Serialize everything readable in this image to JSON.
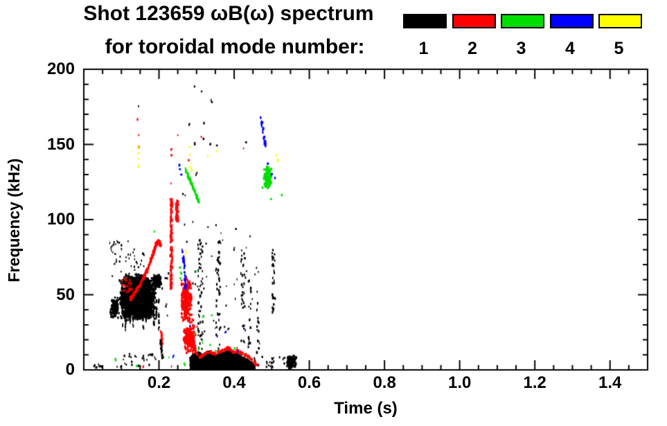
{
  "chart_data": {
    "type": "scatter",
    "title": "Shot 123659 ωB(ω) spectrum",
    "subtitle": "for toroidal mode number:",
    "xlabel": "Time (s)",
    "ylabel": "Frequency (kHz)",
    "xlim": [
      0,
      1.5
    ],
    "ylim": [
      0,
      200
    ],
    "x_major_ticks": [
      0.2,
      0.4,
      0.6,
      0.8,
      1.0,
      1.2,
      1.4
    ],
    "x_tick_labels": [
      "0.2",
      "0.4",
      "0.6",
      "0.8",
      "1.0",
      "1.2",
      "1.4"
    ],
    "x_minor_step": 0.05,
    "y_major_ticks": [
      0,
      50,
      100,
      150,
      200
    ],
    "y_tick_labels": [
      "0",
      "50",
      "100",
      "150",
      "200"
    ],
    "y_minor_step": 10,
    "grid": false,
    "axis_color": "#000000",
    "legend": {
      "position": "top-right",
      "modes": [
        {
          "label": "1",
          "color": "#000000"
        },
        {
          "label": "2",
          "color": "#ff0000"
        },
        {
          "label": "3",
          "color": "#00dd00"
        },
        {
          "label": "4",
          "color": "#0000ff"
        },
        {
          "label": "5",
          "color": "#ffff00"
        }
      ]
    },
    "clusters": [
      {
        "shape": "blob",
        "mode": 1,
        "t": [
          0.094,
          0.192
        ],
        "f": [
          33,
          64
        ],
        "n": 2300,
        "clump": true,
        "size": [
          2.0,
          2.8
        ]
      },
      {
        "shape": "blob",
        "mode": 1,
        "t": [
          0.183,
          0.206
        ],
        "f": [
          55,
          64
        ],
        "n": 200,
        "clump": true,
        "size": [
          2.0,
          2.6
        ]
      },
      {
        "shape": "blob",
        "mode": 1,
        "t": [
          0.07,
          0.093
        ],
        "f": [
          34,
          49
        ],
        "n": 170,
        "clump": true,
        "size": [
          1.8,
          2.4
        ]
      },
      {
        "shape": "striations",
        "mode": 1,
        "t": [
          0.104,
          0.2
        ],
        "cols": 15,
        "f": [
          22,
          52
        ],
        "n": 14
      },
      {
        "shape": "blob",
        "mode": 1,
        "t": [
          0.068,
          0.162
        ],
        "f": [
          62,
          86
        ],
        "n": 48,
        "clump": false,
        "size": [
          1.3,
          2.0
        ]
      },
      {
        "shape": "band",
        "mode": 1,
        "fbase": 0.4,
        "n": 2500,
        "profile": [
          [
            0.283,
            9
          ],
          [
            0.295,
            11
          ],
          [
            0.305,
            12
          ],
          [
            0.315,
            10
          ],
          [
            0.325,
            12
          ],
          [
            0.335,
            13
          ],
          [
            0.345,
            11
          ],
          [
            0.355,
            10
          ],
          [
            0.365,
            11
          ],
          [
            0.375,
            12
          ],
          [
            0.385,
            14
          ],
          [
            0.395,
            12
          ],
          [
            0.405,
            11
          ],
          [
            0.415,
            10
          ],
          [
            0.425,
            8
          ],
          [
            0.435,
            7
          ],
          [
            0.445,
            5
          ],
          [
            0.453,
            3
          ]
        ]
      },
      {
        "shape": "blob",
        "mode": 1,
        "t": [
          0.538,
          0.567
        ],
        "f": [
          1.5,
          10
        ],
        "n": 130,
        "clump": true,
        "size": [
          1.8,
          2.4
        ]
      },
      {
        "shape": "blob",
        "mode": 1,
        "t": [
          0.44,
          0.535
        ],
        "f": [
          1,
          9
        ],
        "n": 26,
        "clump": false,
        "size": [
          1.4,
          2.0
        ]
      },
      {
        "shape": "blob",
        "mode": 1,
        "t": [
          0.1,
          0.18
        ],
        "f": [
          3,
          11
        ],
        "n": 22,
        "clump": false,
        "size": [
          1.4,
          2.0
        ]
      },
      {
        "shape": "line",
        "mode": 1,
        "pts": [
          [
            0.204,
            20
          ],
          [
            0.21,
            8
          ]
        ],
        "w": 3,
        "n": 26,
        "gap": 0.1
      },
      {
        "shape": "vstreak",
        "mode": 1,
        "t": 0.31,
        "tj": 0.006,
        "f": [
          15,
          88
        ],
        "n": 42
      },
      {
        "shape": "vstreak",
        "mode": 1,
        "t": 0.358,
        "tj": 0.006,
        "f": [
          14,
          88
        ],
        "n": 38
      },
      {
        "shape": "vstreak",
        "mode": 1,
        "t": 0.423,
        "tj": 0.005,
        "f": [
          14,
          80
        ],
        "n": 30
      },
      {
        "shape": "vstreak",
        "mode": 1,
        "t": 0.441,
        "tj": 0.004,
        "f": [
          15,
          62
        ],
        "n": 18
      },
      {
        "shape": "vstreak",
        "mode": 1,
        "t": 0.462,
        "tj": 0.004,
        "f": [
          12,
          56
        ],
        "n": 15
      },
      {
        "shape": "vstreak",
        "mode": 1,
        "t": 0.505,
        "tj": 0.004,
        "f": [
          38,
          82
        ],
        "n": 28
      },
      {
        "shape": "blob",
        "mode": 1,
        "t": [
          0.262,
          0.47
        ],
        "f": [
          13,
          100
        ],
        "n": 60,
        "clump": false,
        "size": [
          1.2,
          1.8
        ]
      },
      {
        "shape": "dots",
        "mode": 1,
        "pts": [
          [
            0.1455,
            175
          ],
          [
            0.295,
            188
          ],
          [
            0.313,
            185
          ],
          [
            0.34,
            179
          ],
          [
            0.281,
            163
          ],
          [
            0.32,
            164
          ],
          [
            0.296,
            151
          ],
          [
            0.318,
            154
          ],
          [
            0.337,
            151
          ],
          [
            0.43,
            151
          ],
          [
            0.355,
            150
          ],
          [
            0.3,
            131
          ],
          [
            0.264,
            118
          ],
          [
            0.269,
            116
          ],
          [
            0.218,
            62
          ],
          [
            0.222,
            61
          ],
          [
            0.225,
            64
          ],
          [
            0.21,
            55
          ],
          [
            0.219,
            43
          ],
          [
            0.224,
            36
          ],
          [
            0.028,
            3
          ],
          [
            0.033,
            2
          ],
          [
            0.04,
            3.5
          ],
          [
            0.046,
            2
          ],
          [
            0.088,
            3
          ],
          [
            0.098,
            2.5
          ],
          [
            0.182,
            10
          ],
          [
            0.19,
            8
          ]
        ]
      },
      {
        "shape": "line",
        "mode": 2,
        "pts": [
          [
            0.122,
            47
          ],
          [
            0.132,
            50
          ],
          [
            0.142,
            54
          ],
          [
            0.152,
            58
          ],
          [
            0.162,
            63
          ],
          [
            0.17,
            68
          ],
          [
            0.178,
            73
          ],
          [
            0.186,
            79
          ],
          [
            0.192,
            84
          ],
          [
            0.199,
            86
          ],
          [
            0.204,
            83
          ]
        ],
        "w": 4,
        "n": 300,
        "gap": 0.18
      },
      {
        "shape": "blob",
        "mode": 2,
        "t": [
          0.1,
          0.128
        ],
        "f": [
          52,
          62
        ],
        "n": 26,
        "clump": false,
        "size": [
          1.4,
          2.0
        ]
      },
      {
        "shape": "vstreak",
        "mode": 2,
        "t": 0.2325,
        "tj": 0.0028,
        "f": [
          54,
          114
        ],
        "n": 150
      },
      {
        "shape": "vstreak",
        "mode": 2,
        "t": 0.248,
        "tj": 0.0035,
        "f": [
          99,
          113
        ],
        "n": 55
      },
      {
        "shape": "blob",
        "mode": 2,
        "t": [
          0.257,
          0.288
        ],
        "f": [
          30,
          62
        ],
        "n": 280,
        "clump": true,
        "size": [
          2.0,
          2.6
        ]
      },
      {
        "shape": "blob",
        "mode": 2,
        "t": [
          0.262,
          0.298
        ],
        "f": [
          11,
          31
        ],
        "n": 220,
        "clump": true,
        "size": [
          2.0,
          2.6
        ]
      },
      {
        "shape": "line",
        "mode": 2,
        "pts": [
          [
            0.288,
            16
          ],
          [
            0.298,
            12
          ],
          [
            0.308,
            9
          ],
          [
            0.318,
            10
          ],
          [
            0.328,
            12
          ],
          [
            0.338,
            12
          ],
          [
            0.348,
            11
          ],
          [
            0.358,
            12
          ],
          [
            0.368,
            13
          ],
          [
            0.378,
            14
          ],
          [
            0.385,
            15
          ],
          [
            0.393,
            13
          ],
          [
            0.4,
            12
          ],
          [
            0.408,
            13
          ],
          [
            0.415,
            12
          ],
          [
            0.423,
            11
          ],
          [
            0.43,
            10
          ],
          [
            0.438,
            9
          ],
          [
            0.447,
            7
          ],
          [
            0.455,
            5
          ],
          [
            0.462,
            4
          ]
        ],
        "w": 3.5,
        "n": 260,
        "gap": 0.3
      },
      {
        "shape": "line",
        "mode": 2,
        "pts": [
          [
            0.206,
            26
          ],
          [
            0.209,
            17
          ]
        ],
        "w": 2.5,
        "n": 14,
        "gap": 0.1
      },
      {
        "shape": "dots",
        "mode": 2,
        "pts": [
          [
            0.25,
            156
          ],
          [
            0.313,
            156
          ],
          [
            0.426,
            148
          ],
          [
            0.28,
            139
          ],
          [
            0.144,
            167
          ],
          [
            0.146,
            156
          ],
          [
            0.146,
            149
          ],
          [
            0.2325,
            147
          ],
          [
            0.2325,
            143
          ],
          [
            0.2325,
            125
          ],
          [
            0.29,
            33
          ],
          [
            0.3,
            28
          ],
          [
            0.103,
            57
          ],
          [
            0.112,
            60
          ],
          [
            0.158,
            3
          ],
          [
            0.235,
            2.5
          ]
        ]
      },
      {
        "shape": "line",
        "mode": 3,
        "pts": [
          [
            0.271,
            134
          ],
          [
            0.278,
            129
          ],
          [
            0.284,
            126
          ],
          [
            0.29,
            122
          ],
          [
            0.296,
            118
          ],
          [
            0.301,
            115
          ],
          [
            0.306,
            112
          ]
        ],
        "w": 4.5,
        "n": 110,
        "gap": 0.25
      },
      {
        "shape": "blob",
        "mode": 3,
        "t": [
          0.477,
          0.5
        ],
        "f": [
          121,
          136
        ],
        "n": 120,
        "clump": true,
        "size": [
          2.0,
          2.6
        ]
      },
      {
        "shape": "dots",
        "mode": 3,
        "pts": [
          [
            0.188,
            92
          ],
          [
            0.256,
            68
          ],
          [
            0.258,
            65
          ],
          [
            0.3,
            65
          ],
          [
            0.257,
            61
          ],
          [
            0.318,
            36
          ],
          [
            0.34,
            36
          ],
          [
            0.298,
            25
          ],
          [
            0.315,
            19
          ],
          [
            0.335,
            17
          ],
          [
            0.305,
            14
          ],
          [
            0.352,
            13
          ],
          [
            0.4,
            14
          ],
          [
            0.085,
            7
          ],
          [
            0.142,
            3
          ],
          [
            0.225,
            9
          ],
          [
            0.474,
            122
          ],
          [
            0.527,
            116
          ],
          [
            0.497,
            114
          ],
          [
            0.268,
            4
          ]
        ]
      },
      {
        "shape": "line",
        "mode": 4,
        "pts": [
          [
            0.262,
            80
          ],
          [
            0.265,
            73
          ],
          [
            0.268,
            65
          ],
          [
            0.27,
            58
          ],
          [
            0.272,
            53
          ]
        ],
        "w": 2.5,
        "n": 45,
        "gap": 0.12
      },
      {
        "shape": "line",
        "mode": 4,
        "pts": [
          [
            0.471,
            169
          ],
          [
            0.476,
            161
          ],
          [
            0.481,
            152
          ],
          [
            0.486,
            146
          ]
        ],
        "w": 2.5,
        "n": 40,
        "gap": 0.15
      },
      {
        "shape": "dots",
        "mode": 4,
        "pts": [
          [
            0.49,
            137
          ],
          [
            0.5,
            131
          ],
          [
            0.508,
            128
          ],
          [
            0.254,
            137
          ],
          [
            0.256,
            133
          ],
          [
            0.259,
            130
          ],
          [
            0.284,
            30
          ],
          [
            0.354,
            22
          ],
          [
            0.376,
            25
          ],
          [
            0.41,
            12
          ],
          [
            0.43,
            26
          ],
          [
            0.238,
            9
          ]
        ]
      },
      {
        "shape": "dots",
        "mode": 5,
        "pts": [
          [
            0.145,
            148
          ],
          [
            0.145,
            144
          ],
          [
            0.1455,
            140
          ],
          [
            0.146,
            136
          ],
          [
            0.28,
            148
          ],
          [
            0.282,
            143
          ],
          [
            0.285,
            137
          ],
          [
            0.287,
            133
          ],
          [
            0.284,
            135
          ],
          [
            0.33,
            143
          ],
          [
            0.352,
            145
          ],
          [
            0.512,
            143
          ],
          [
            0.516,
            140
          ],
          [
            0.271,
            79
          ]
        ]
      }
    ]
  }
}
